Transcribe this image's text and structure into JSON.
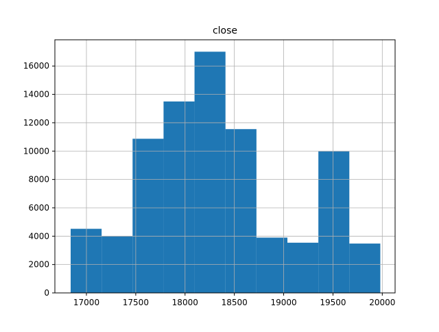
{
  "chart_data": {
    "type": "histogram",
    "title": "close",
    "xlabel": "",
    "ylabel": "",
    "xlim": [
      16680,
      20130
    ],
    "ylim": [
      0,
      17850
    ],
    "grid": true,
    "bar_color": "#1f77b4",
    "bins": [
      {
        "x0": 16840,
        "x1": 17154,
        "count": 4520
      },
      {
        "x0": 17154,
        "x1": 17468,
        "count": 3990
      },
      {
        "x0": 17468,
        "x1": 17782,
        "count": 10870
      },
      {
        "x0": 17782,
        "x1": 18096,
        "count": 13500
      },
      {
        "x0": 18096,
        "x1": 18410,
        "count": 17010
      },
      {
        "x0": 18410,
        "x1": 18724,
        "count": 11550
      },
      {
        "x0": 18724,
        "x1": 19038,
        "count": 3900
      },
      {
        "x0": 19038,
        "x1": 19352,
        "count": 3540
      },
      {
        "x0": 19352,
        "x1": 19666,
        "count": 9980
      },
      {
        "x0": 19666,
        "x1": 19980,
        "count": 3480
      }
    ],
    "xticks": [
      17000,
      17500,
      18000,
      18500,
      19000,
      19500,
      20000
    ],
    "xtick_labels": [
      "17000",
      "17500",
      "18000",
      "18500",
      "19000",
      "19500",
      "20000"
    ],
    "yticks": [
      0,
      2000,
      4000,
      6000,
      8000,
      10000,
      12000,
      14000,
      16000
    ],
    "ytick_labels": [
      "0",
      "2000",
      "4000",
      "6000",
      "8000",
      "10000",
      "12000",
      "14000",
      "16000"
    ]
  }
}
